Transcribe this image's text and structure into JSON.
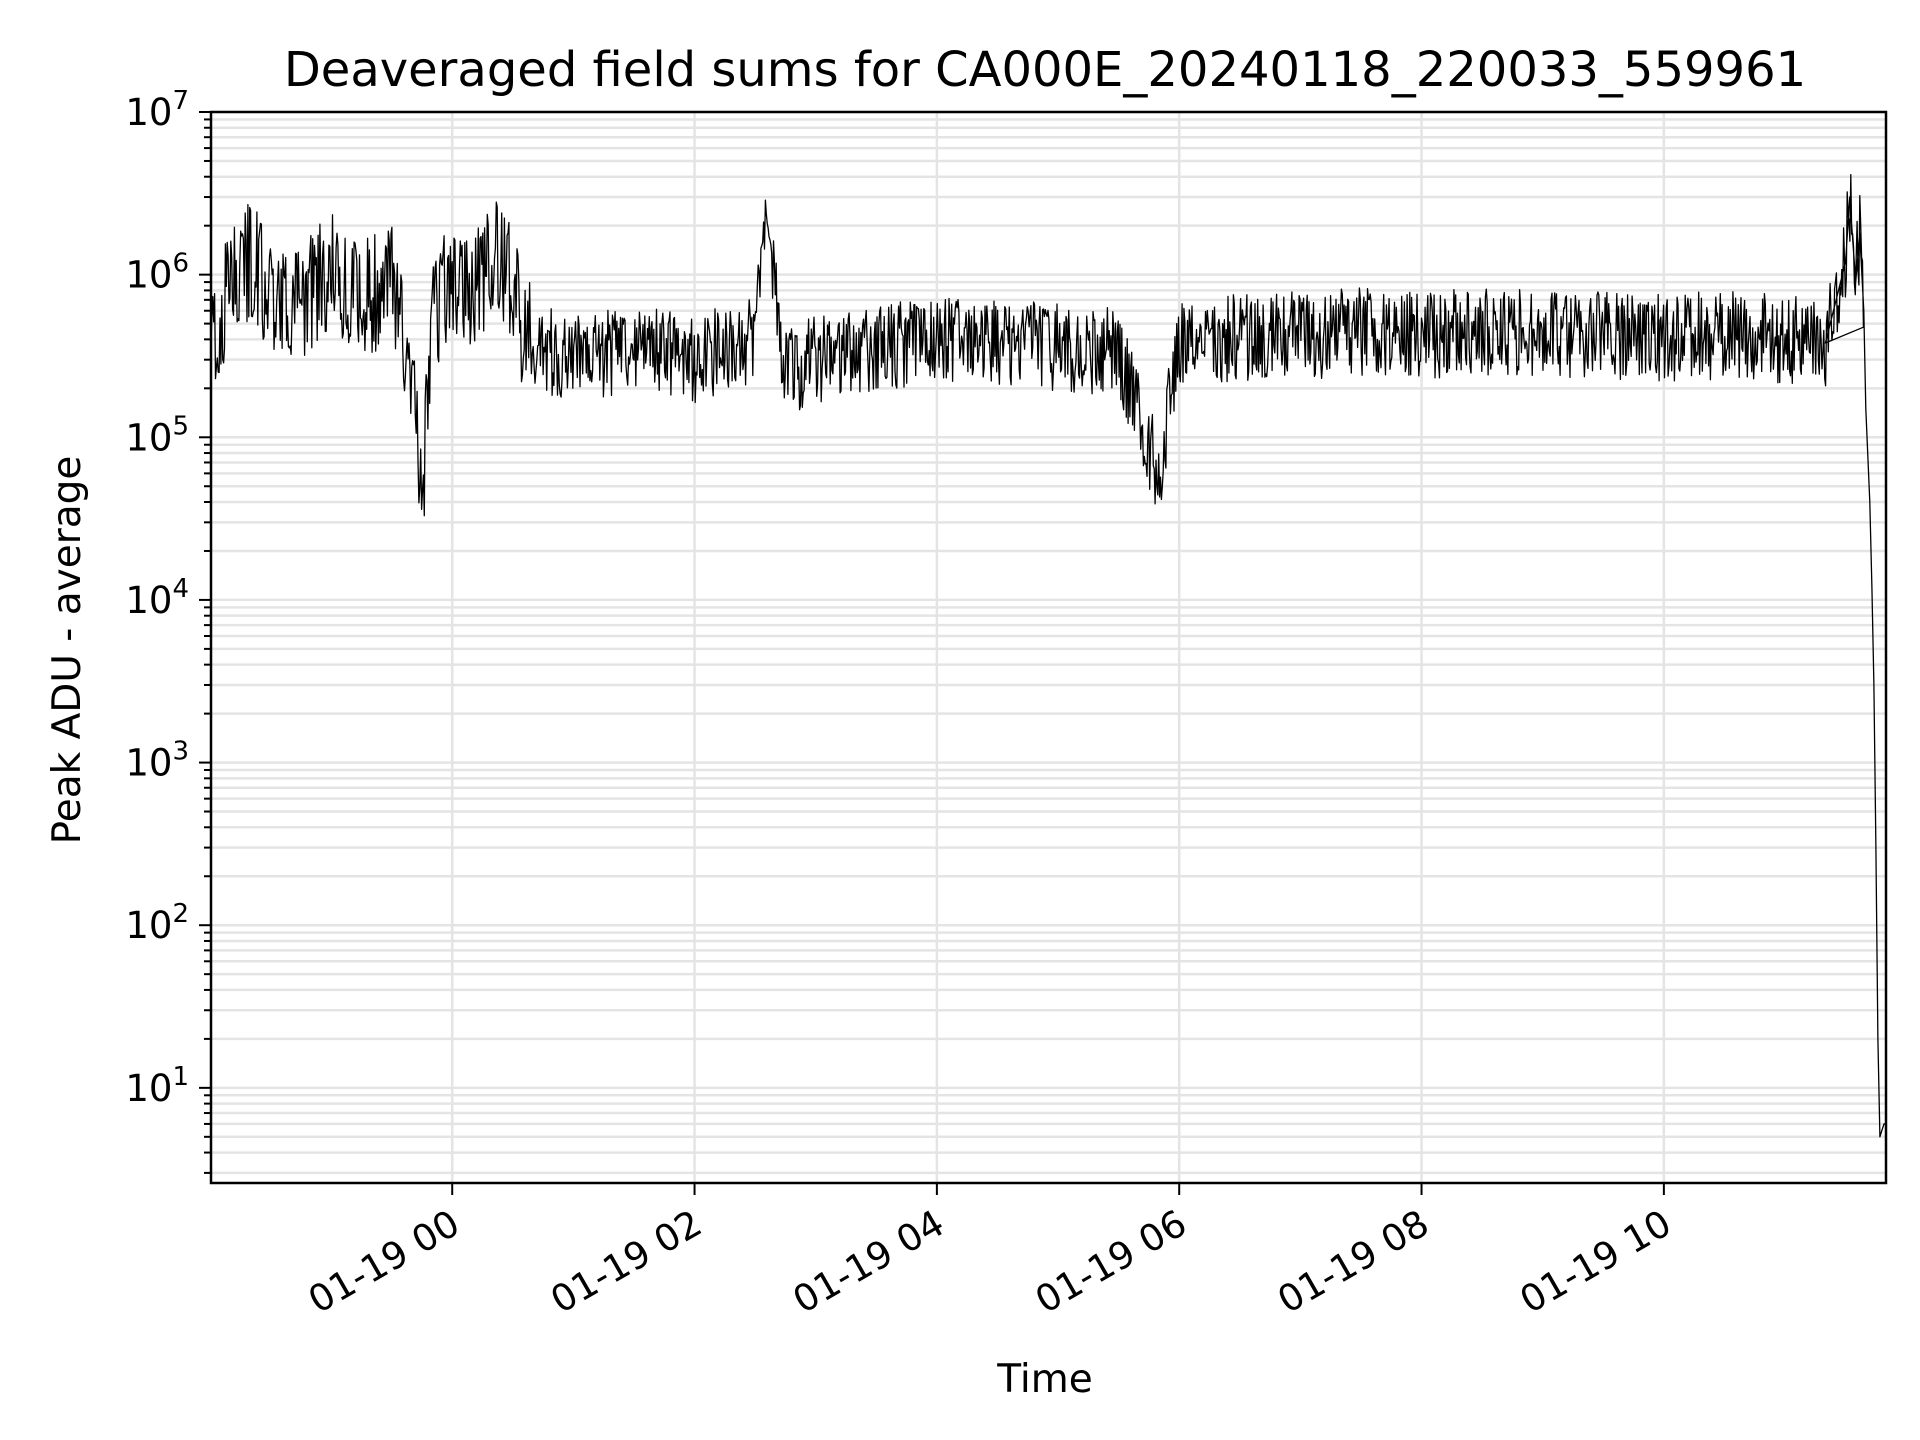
{
  "chart_data": {
    "type": "line",
    "title": "Deaveraged field sums for CA000E_20240118_220033_559961",
    "xlabel": "Time",
    "ylabel": "Peak ADU - average",
    "yscale": "log",
    "ylim": [
      2.6,
      10000000
    ],
    "xlim": [
      "2024-01-18 22:00:33",
      "2024-01-19 11:50:00"
    ],
    "grid": true,
    "line_color": "#000000",
    "grid_color": "#e4e4e4",
    "y_ticks": [
      {
        "base": "10",
        "exp": "1",
        "value": 10
      },
      {
        "base": "10",
        "exp": "2",
        "value": 100
      },
      {
        "base": "10",
        "exp": "3",
        "value": 1000
      },
      {
        "base": "10",
        "exp": "4",
        "value": 10000
      },
      {
        "base": "10",
        "exp": "5",
        "value": 100000
      },
      {
        "base": "10",
        "exp": "6",
        "value": 1000000
      },
      {
        "base": "10",
        "exp": "7",
        "value": 10000000
      }
    ],
    "x_ticks": [
      {
        "label": "01-19 00",
        "value": "2024-01-19 00:00"
      },
      {
        "label": "01-19 02",
        "value": "2024-01-19 02:00"
      },
      {
        "label": "01-19 04",
        "value": "2024-01-19 04:00"
      },
      {
        "label": "01-19 06",
        "value": "2024-01-19 06:00"
      },
      {
        "label": "01-19 08",
        "value": "2024-01-19 08:00"
      },
      {
        "label": "01-19 10",
        "value": "2024-01-19 10:00"
      }
    ],
    "series": [
      {
        "x": [
          "2024-01-18 22:00:33",
          "2024-01-18 22:10",
          "2024-01-18 22:20",
          "2024-01-18 22:30",
          "2024-01-18 22:45",
          "2024-01-18 23:00",
          "2024-01-18 23:15",
          "2024-01-18 23:30",
          "2024-01-18 23:40",
          "2024-01-18 23:45",
          "2024-01-18 23:50",
          "2024-01-19 00:00",
          "2024-01-19 00:10",
          "2024-01-19 00:20",
          "2024-01-19 00:30",
          "2024-01-19 00:35",
          "2024-01-19 00:45",
          "2024-01-19 01:00",
          "2024-01-19 01:30",
          "2024-01-19 02:00",
          "2024-01-19 02:30",
          "2024-01-19 02:35",
          "2024-01-19 02:45",
          "2024-01-19 03:00",
          "2024-01-19 03:30",
          "2024-01-19 04:00",
          "2024-01-19 04:30",
          "2024-01-19 05:00",
          "2024-01-19 05:30",
          "2024-01-19 05:50",
          "2024-01-19 06:00",
          "2024-01-19 06:30",
          "2024-01-19 07:00",
          "2024-01-19 07:30",
          "2024-01-19 08:00",
          "2024-01-19 08:30",
          "2024-01-19 09:00",
          "2024-01-19 09:30",
          "2024-01-19 10:00",
          "2024-01-19 10:30",
          "2024-01-19 11:00",
          "2024-01-19 11:20",
          "2024-01-19 11:30",
          "2024-01-19 11:32",
          "2024-01-19 11:35",
          "2024-01-19 11:37",
          "2024-01-19 11:39",
          "2024-01-19 11:40",
          "2024-01-19 11:42",
          "2024-01-19 11:43",
          "2024-01-19 11:44",
          "2024-01-19 11:45",
          "2024-01-19 11:46",
          "2024-01-19 11:47",
          "2024-01-19 11:48",
          "2024-01-19 11:49",
          "2024-01-19 11:50"
        ],
        "y": [
          300000,
          900000,
          1200000,
          800000,
          600000,
          1100000,
          700000,
          900000,
          300000,
          35000,
          500000,
          1000000,
          700000,
          1300000,
          900000,
          400000,
          350000,
          300000,
          350000,
          300000,
          400000,
          2800000,
          250000,
          300000,
          350000,
          400000,
          380000,
          350000,
          330000,
          60000,
          400000,
          400000,
          420000,
          450000,
          430000,
          440000,
          450000,
          420000,
          410000,
          420000,
          400000,
          380000,
          1200000,
          3000000,
          900000,
          1800000,
          600000,
          150000,
          40000,
          12000,
          3000,
          300,
          20,
          5,
          5.5,
          6,
          6
        ]
      }
    ]
  }
}
